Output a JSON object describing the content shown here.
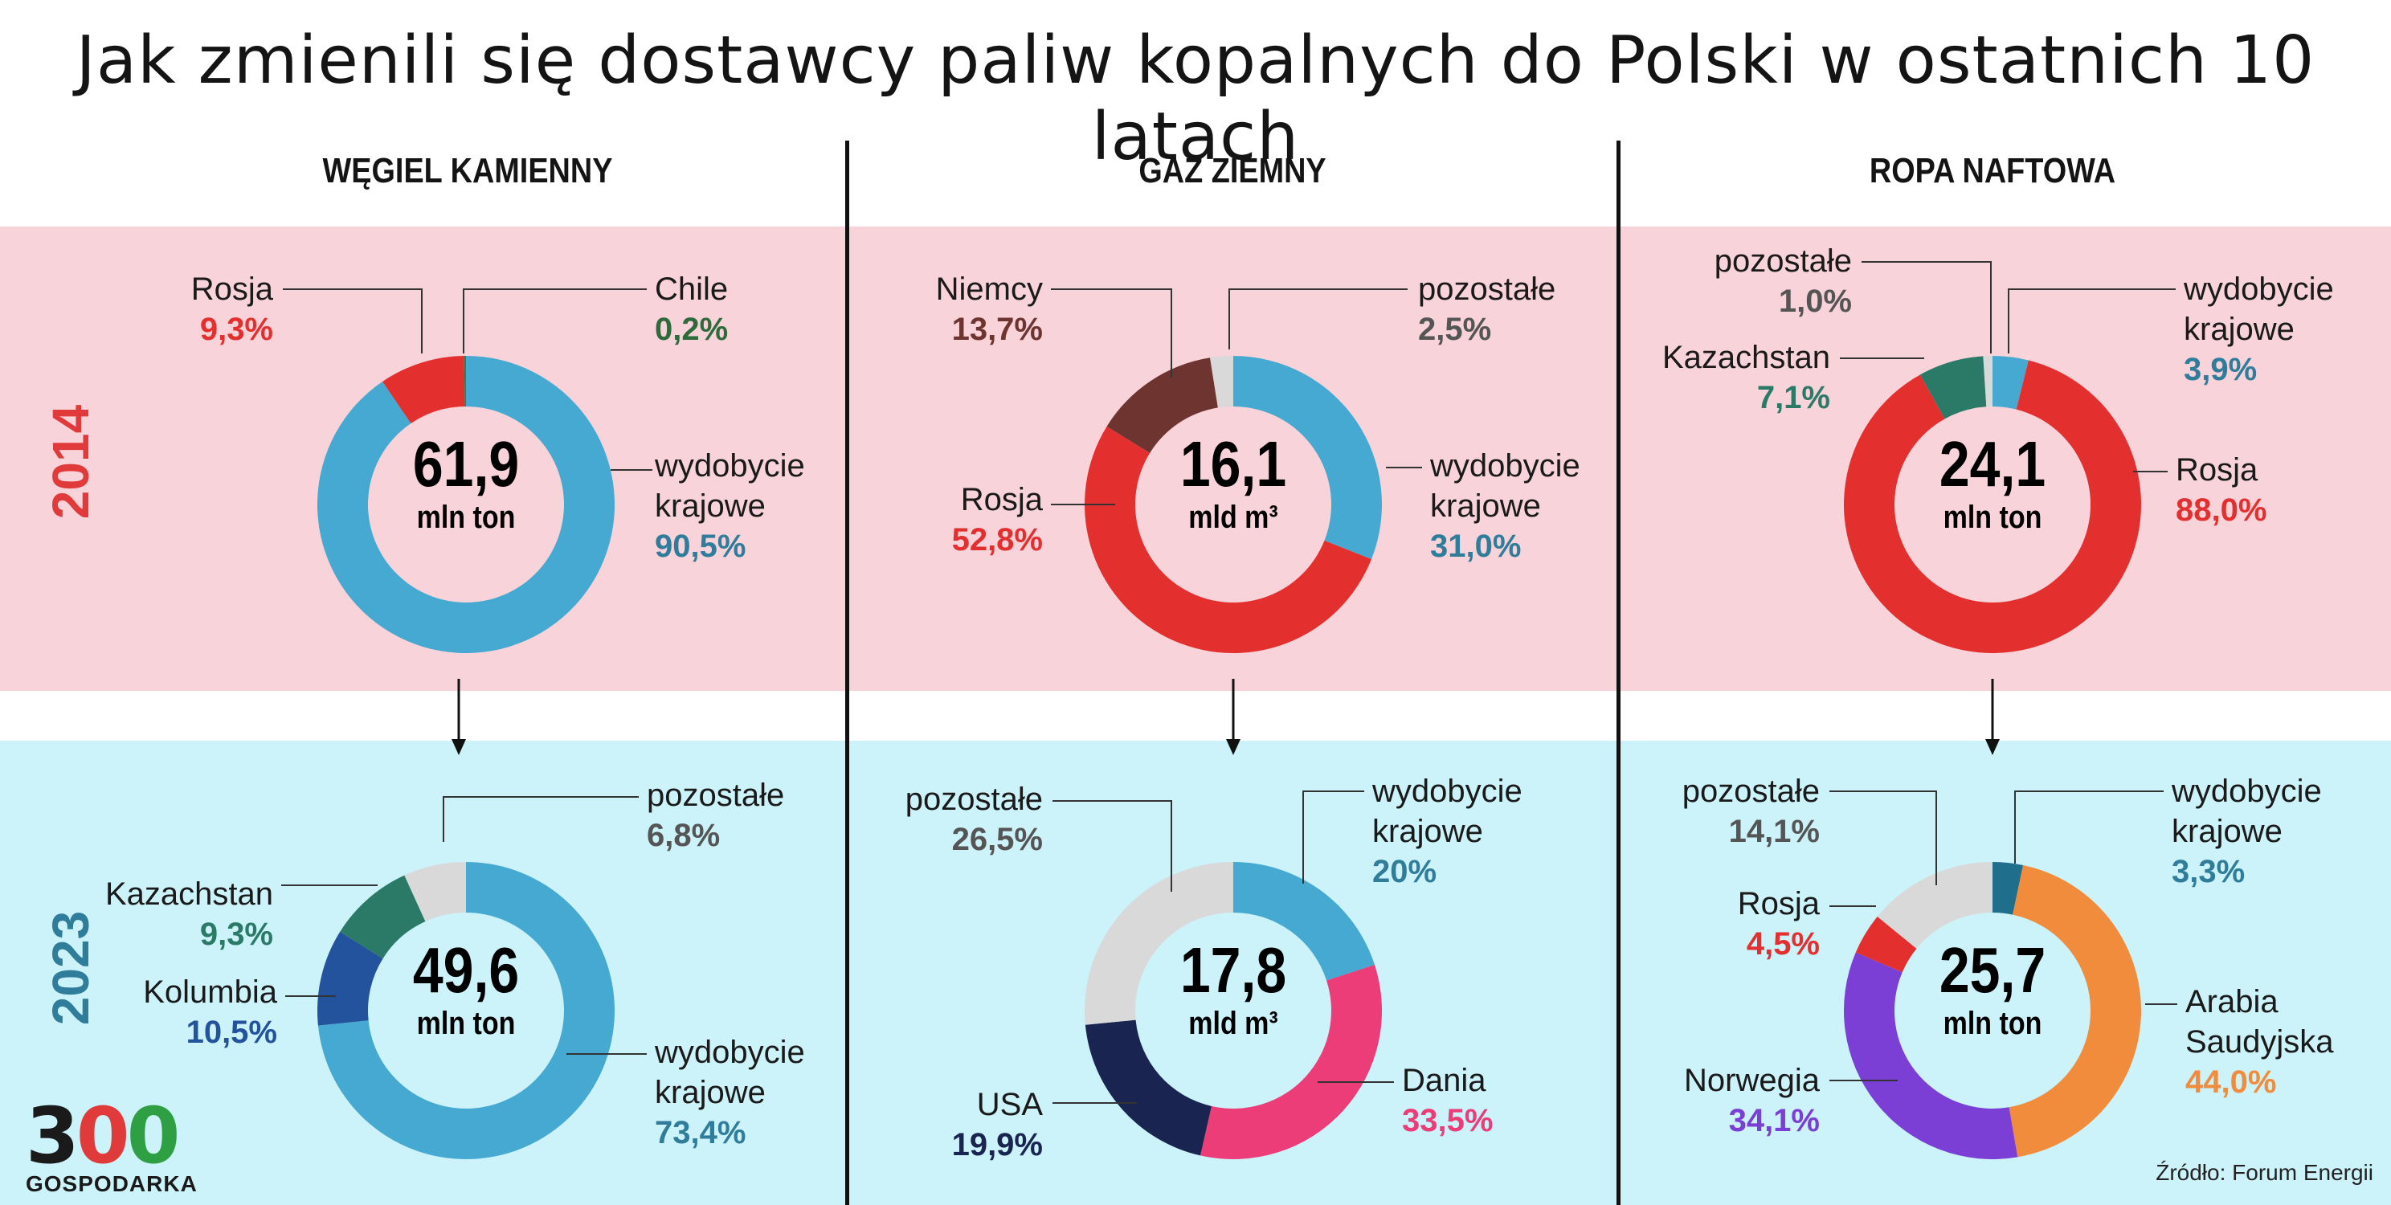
{
  "title": "Jak zmienili się dostawcy paliw kopalnych do Polski w ostatnich 10 latach",
  "colors": {
    "band_2014": "#f8d3da",
    "band_2023": "#ccf2fa",
    "year_2014": "#e03a3a",
    "year_2023": "#2f7d9a"
  },
  "years": {
    "top": "2014",
    "bottom": "2023"
  },
  "columns": [
    {
      "heading": "WĘGIEL KAMIENNY"
    },
    {
      "heading": "GAZ ZIEMNY"
    },
    {
      "heading": "ROPA NAFTOWA"
    }
  ],
  "chart_data": [
    {
      "type": "pie",
      "donut": true,
      "fuel": "WĘGIEL KAMIENNY",
      "year": "2014",
      "total": "61,9",
      "unit": "mln ton",
      "slices": [
        {
          "name": "wydobycie krajowe",
          "label_lines": [
            "wydobycie",
            "krajowe"
          ],
          "value_label": "90,5%",
          "value": 90.5,
          "color": "#45a9d1",
          "text_color": "#2f7d9a"
        },
        {
          "name": "Rosja",
          "label_lines": [
            "Rosja"
          ],
          "value_label": "9,3%",
          "value": 9.3,
          "color": "#e3302f",
          "text_color": "#e3302f"
        },
        {
          "name": "Chile",
          "label_lines": [
            "Chile"
          ],
          "value_label": "0,2%",
          "value": 0.2,
          "color": "#2e7d4f",
          "text_color": "#2e6b3a"
        }
      ]
    },
    {
      "type": "pie",
      "donut": true,
      "fuel": "WĘGIEL KAMIENNY",
      "year": "2023",
      "total": "49,6",
      "unit": "mln ton",
      "slices": [
        {
          "name": "wydobycie krajowe",
          "label_lines": [
            "wydobycie",
            "krajowe"
          ],
          "value_label": "73,4%",
          "value": 73.4,
          "color": "#45a9d1",
          "text_color": "#2f7d9a"
        },
        {
          "name": "Kolumbia",
          "label_lines": [
            "Kolumbia"
          ],
          "value_label": "10,5%",
          "value": 10.5,
          "color": "#24539e",
          "text_color": "#24539e"
        },
        {
          "name": "Kazachstan",
          "label_lines": [
            "Kazachstan"
          ],
          "value_label": "9,3%",
          "value": 9.3,
          "color": "#2b7a68",
          "text_color": "#2b7a68"
        },
        {
          "name": "pozostałe",
          "label_lines": [
            "pozostałe"
          ],
          "value_label": "6,8%",
          "value": 6.8,
          "color": "#d9d9d9",
          "text_color": "#555555"
        }
      ]
    },
    {
      "type": "pie",
      "donut": true,
      "fuel": "GAZ ZIEMNY",
      "year": "2014",
      "total": "16,1",
      "unit": "mld m³",
      "slices": [
        {
          "name": "wydobycie krajowe",
          "label_lines": [
            "wydobycie",
            "krajowe"
          ],
          "value_label": "31,0%",
          "value": 31.0,
          "color": "#45a9d1",
          "text_color": "#2f7d9a"
        },
        {
          "name": "Rosja",
          "label_lines": [
            "Rosja"
          ],
          "value_label": "52,8%",
          "value": 52.8,
          "color": "#e3302f",
          "text_color": "#e3302f"
        },
        {
          "name": "Niemcy",
          "label_lines": [
            "Niemcy"
          ],
          "value_label": "13,7%",
          "value": 13.7,
          "color": "#6e3530",
          "text_color": "#6e3530"
        },
        {
          "name": "pozostałe",
          "label_lines": [
            "pozostałe"
          ],
          "value_label": "2,5%",
          "value": 2.5,
          "color": "#d9d9d9",
          "text_color": "#555555"
        }
      ]
    },
    {
      "type": "pie",
      "donut": true,
      "fuel": "GAZ ZIEMNY",
      "year": "2023",
      "total": "17,8",
      "unit": "mld m³",
      "slices": [
        {
          "name": "wydobycie krajowe",
          "label_lines": [
            "wydobycie",
            "krajowe"
          ],
          "value_label": "20%",
          "value": 20.0,
          "color": "#45a9d1",
          "text_color": "#2f7d9a"
        },
        {
          "name": "Dania",
          "label_lines": [
            "Dania"
          ],
          "value_label": "33,5%",
          "value": 33.5,
          "color": "#ec3d78",
          "text_color": "#ec3d78"
        },
        {
          "name": "USA",
          "label_lines": [
            "USA"
          ],
          "value_label": "19,9%",
          "value": 19.9,
          "color": "#1a2450",
          "text_color": "#1a2450"
        },
        {
          "name": "pozostałe",
          "label_lines": [
            "pozostałe"
          ],
          "value_label": "26,5%",
          "value": 26.5,
          "color": "#d9d9d9",
          "text_color": "#555555"
        }
      ]
    },
    {
      "type": "pie",
      "donut": true,
      "fuel": "ROPA NAFTOWA",
      "year": "2014",
      "total": "24,1",
      "unit": "mln ton",
      "slices": [
        {
          "name": "wydobycie krajowe",
          "label_lines": [
            "wydobycie",
            "krajowe"
          ],
          "value_label": "3,9%",
          "value": 3.9,
          "color": "#45a9d1",
          "text_color": "#2f7d9a"
        },
        {
          "name": "Rosja",
          "label_lines": [
            "Rosja"
          ],
          "value_label": "88,0%",
          "value": 88.0,
          "color": "#e3302f",
          "text_color": "#e3302f"
        },
        {
          "name": "Kazachstan",
          "label_lines": [
            "Kazachstan"
          ],
          "value_label": "7,1%",
          "value": 7.1,
          "color": "#2b7a68",
          "text_color": "#2b7a68"
        },
        {
          "name": "pozostałe",
          "label_lines": [
            "pozostałe"
          ],
          "value_label": "1,0%",
          "value": 1.0,
          "color": "#d9d9d9",
          "text_color": "#555555"
        }
      ]
    },
    {
      "type": "pie",
      "donut": true,
      "fuel": "ROPA NAFTOWA",
      "year": "2023",
      "total": "25,7",
      "unit": "mln ton",
      "slices": [
        {
          "name": "wydobycie krajowe",
          "label_lines": [
            "wydobycie",
            "krajowe"
          ],
          "value_label": "3,3%",
          "value": 3.3,
          "color": "#1f6e8c",
          "text_color": "#2f7d9a"
        },
        {
          "name": "Arabia Saudyjska",
          "label_lines": [
            "Arabia",
            "Saudyjska"
          ],
          "value_label": "44,0%",
          "value": 44.0,
          "color": "#f08c3c",
          "text_color": "#f08c3c"
        },
        {
          "name": "Norwegia",
          "label_lines": [
            "Norwegia"
          ],
          "value_label": "34,1%",
          "value": 34.1,
          "color": "#7b3fd6",
          "text_color": "#7b3fd6"
        },
        {
          "name": "Rosja",
          "label_lines": [
            "Rosja"
          ],
          "value_label": "4,5%",
          "value": 4.5,
          "color": "#e3302f",
          "text_color": "#e3302f"
        },
        {
          "name": "pozostałe",
          "label_lines": [
            "pozostałe"
          ],
          "value_label": "14,1%",
          "value": 14.1,
          "color": "#d9d9d9",
          "text_color": "#555555"
        }
      ]
    }
  ],
  "logo": {
    "number_parts": [
      "3",
      "0",
      "0"
    ],
    "text": "GOSPODARKA"
  },
  "source": "Źródło: Forum Energii"
}
